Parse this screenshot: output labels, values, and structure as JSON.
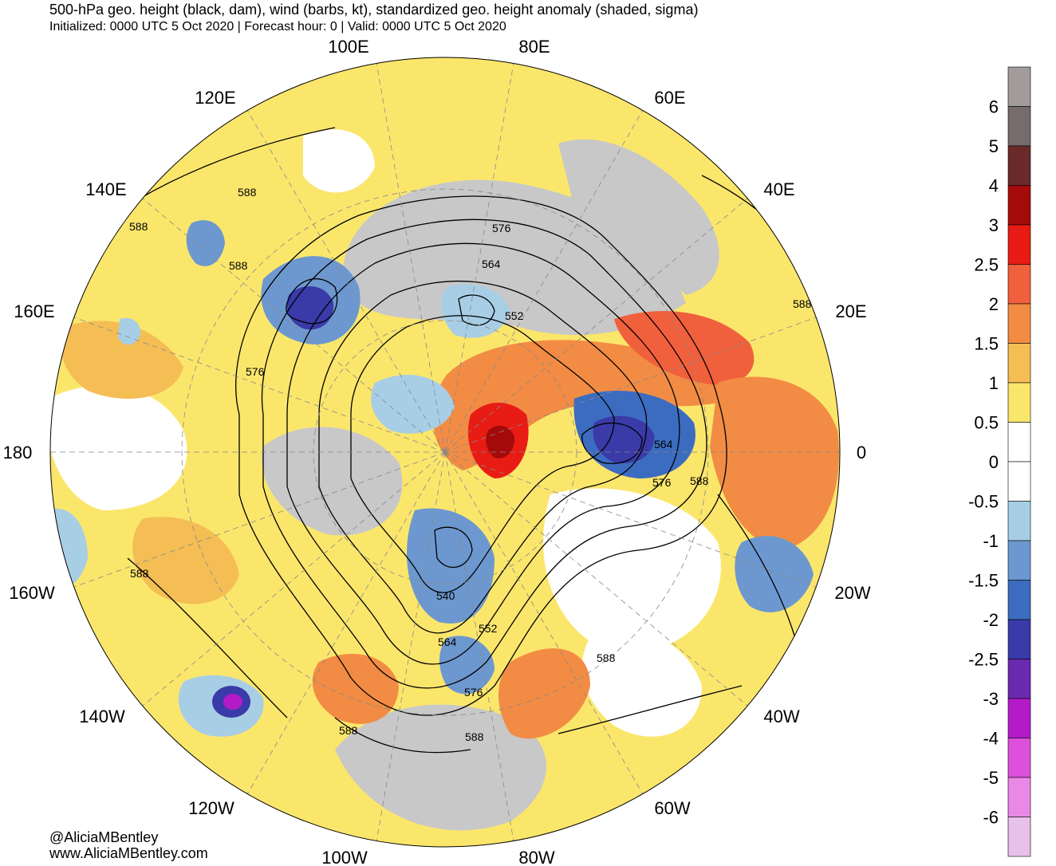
{
  "header": {
    "title": "500-hPa geo. height (black, dam), wind (barbs, kt), standardized geo. height anomaly (shaded, sigma)",
    "subtitle": "Initialized: 0000 UTC 5 Oct 2020 | Forecast hour: 0 | Valid: 0000 UTC 5 Oct 2020"
  },
  "credits": {
    "handle": "@AliciaMBentley",
    "website": "www.AliciaMBentley.com"
  },
  "map": {
    "projection": "north-polar-stereographic",
    "longitude_labels": [
      "100E",
      "80E",
      "120E",
      "60E",
      "140E",
      "40E",
      "160E",
      "20E",
      "180",
      "0",
      "160W",
      "20W",
      "140W",
      "40W",
      "120W",
      "60W",
      "100W",
      "80W"
    ],
    "contour_labels": [
      "588",
      "588",
      "588",
      "576",
      "564",
      "552",
      "576",
      "564",
      "576",
      "588",
      "588",
      "588",
      "540",
      "552",
      "564",
      "576",
      "588",
      "588",
      "588"
    ],
    "features": [
      {
        "name": "anomaly-low-east-asia",
        "sigma": -2.5
      },
      {
        "name": "anomaly-low-hudson-bay",
        "sigma": -1.5
      },
      {
        "name": "anomaly-low-great-lakes",
        "sigma": -1.5
      },
      {
        "name": "anomaly-low-scandinavia",
        "sigma": -2.5
      },
      {
        "name": "anomaly-high-greenland",
        "sigma": 3
      },
      {
        "name": "anomaly-high-europe",
        "sigma": 2
      },
      {
        "name": "anomaly-low-pacific-cyclone",
        "sigma": -4
      }
    ]
  },
  "colorbar": {
    "labels": [
      "6",
      "5",
      "4",
      "3",
      "2.5",
      "2",
      "1.5",
      "1",
      "0.5",
      "0",
      "-0.5",
      "-1",
      "-1.5",
      "-2",
      "-2.5",
      "-3",
      "-4",
      "-5",
      "-6"
    ],
    "colors": [
      "#a39c9c",
      "#766c6c",
      "#6b2a2a",
      "#a50a0a",
      "#e81c14",
      "#f0603c",
      "#f28c44",
      "#f4be54",
      "#fbe66c",
      "#ffffff",
      "#ffffff",
      "#a8cee6",
      "#6d98cf",
      "#3c6cc0",
      "#3a3aa8",
      "#6a2ab0",
      "#b41ac8",
      "#dc50dc",
      "#ea88e6",
      "#e8c0ec"
    ]
  }
}
